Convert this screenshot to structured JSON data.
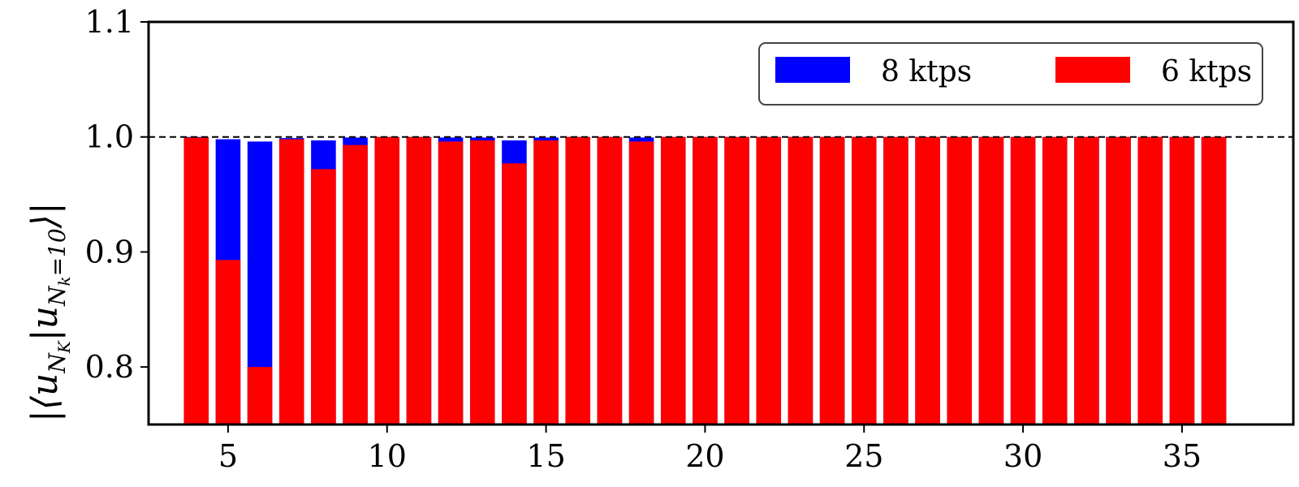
{
  "chart_data": {
    "type": "bar",
    "title": "",
    "xlabel": "",
    "ylabel": "|⟨u_{N_K} | u_{N_k=10}⟩|",
    "ylabel_parts": {
      "open": "|⟨u",
      "sub1": "N",
      "sub1b": "K",
      "mid": "|u",
      "sub2": "N",
      "sub2b": "k",
      "sub2c": "=10",
      "close": "⟩|"
    },
    "xlim": [
      2.5,
      38.5
    ],
    "ylim": [
      0.75,
      1.1
    ],
    "xticks": [
      5,
      10,
      15,
      20,
      25,
      30,
      35
    ],
    "yticks": [
      0.8,
      0.9,
      1.0,
      1.1
    ],
    "ytick_labels": [
      "0.8",
      "0.9",
      "1.0",
      "1.1"
    ],
    "reference_line": 1.0,
    "stacking": "overlay",
    "legend_position": "top-right",
    "x": [
      4,
      5,
      6,
      7,
      8,
      9,
      10,
      11,
      12,
      13,
      14,
      15,
      16,
      17,
      18,
      19,
      20,
      21,
      22,
      23,
      24,
      25,
      26,
      27,
      28,
      29,
      30,
      31,
      32,
      33,
      34,
      35,
      36
    ],
    "series": [
      {
        "name": "8 ktps",
        "color": "#0000ff",
        "values": [
          1.0,
          0.998,
          0.996,
          0.999,
          0.997,
          0.9995,
          1.0,
          1.0,
          0.9995,
          0.9995,
          0.997,
          0.9995,
          1.0,
          1.0,
          0.9995,
          1.0,
          1.0,
          1.0,
          1.0,
          1.0,
          1.0,
          1.0,
          1.0,
          1.0,
          1.0,
          1.0,
          1.0,
          1.0,
          1.0,
          1.0,
          1.0,
          1.0,
          1.0
        ]
      },
      {
        "name": "6 ktps",
        "color": "#ff0000",
        "values": [
          0.9995,
          0.893,
          0.8,
          0.998,
          0.972,
          0.993,
          1.0,
          1.0,
          0.996,
          0.997,
          0.977,
          0.997,
          1.0,
          1.0,
          0.996,
          1.0,
          1.0,
          1.0,
          1.0,
          1.0,
          1.0,
          1.0,
          1.0,
          1.0,
          1.0,
          1.0,
          1.0,
          1.0,
          1.0,
          1.0,
          1.0,
          1.0,
          1.0
        ]
      }
    ]
  }
}
